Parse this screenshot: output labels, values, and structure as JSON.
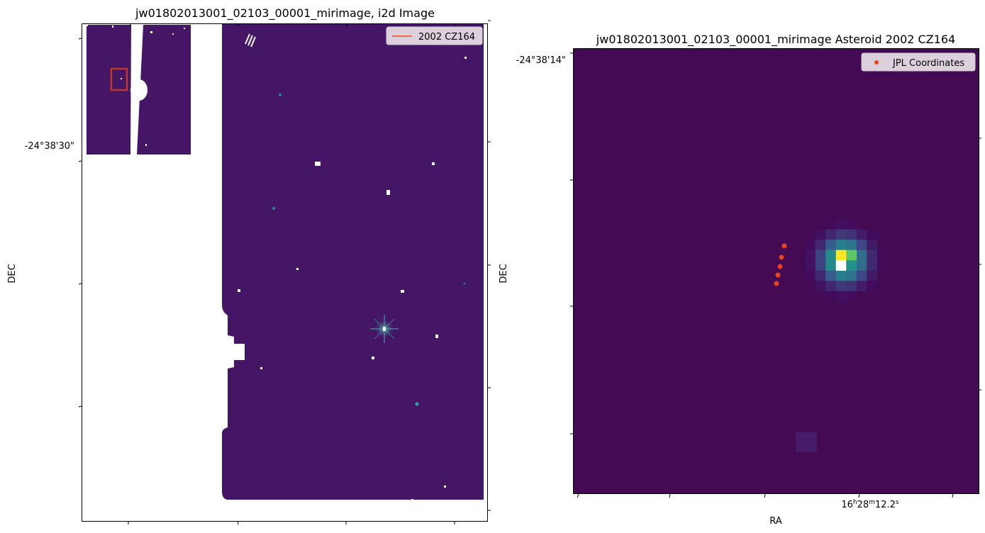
{
  "colors": {
    "background_field": "#451665",
    "background_field_right": "#440a54",
    "marker": "#e8441e",
    "cutout_box": "#c0392b",
    "track_line": "#ee6a4a",
    "legend_bg": "#ddd0dd"
  },
  "chart_data": [
    {
      "type": "heatmap",
      "title": "jw01802013001_02103_00001_mirimage,  i2d Image",
      "xlabel": "",
      "ylabel": "DEC",
      "y_tick_labels": [
        "-24°38'30\""
      ],
      "legend": {
        "placement": "top-right",
        "entries": [
          {
            "label": "2002 CZ164",
            "marker": "line"
          }
        ]
      },
      "colormap": "viridis",
      "grid": false,
      "features": [
        "field image with white masked regions",
        "inset thumbnail with red box marking cutout",
        "bright star with diffraction spikes"
      ]
    },
    {
      "type": "heatmap",
      "title": "jw01802013001_02103_00001_mirimage Asteroid 2002 CZ164",
      "xlabel": "RA",
      "ylabel": "DEC",
      "x_tick_labels": [
        "16h28m12.2s"
      ],
      "y_tick_labels": [
        "-24°38'14\""
      ],
      "legend": {
        "placement": "top-right",
        "entries": [
          {
            "label": "JPL Coordinates",
            "marker": "dot"
          }
        ]
      },
      "colormap": "viridis",
      "grid": false,
      "series": [
        {
          "name": "JPL Coordinates",
          "points_count": 5
        }
      ]
    }
  ]
}
